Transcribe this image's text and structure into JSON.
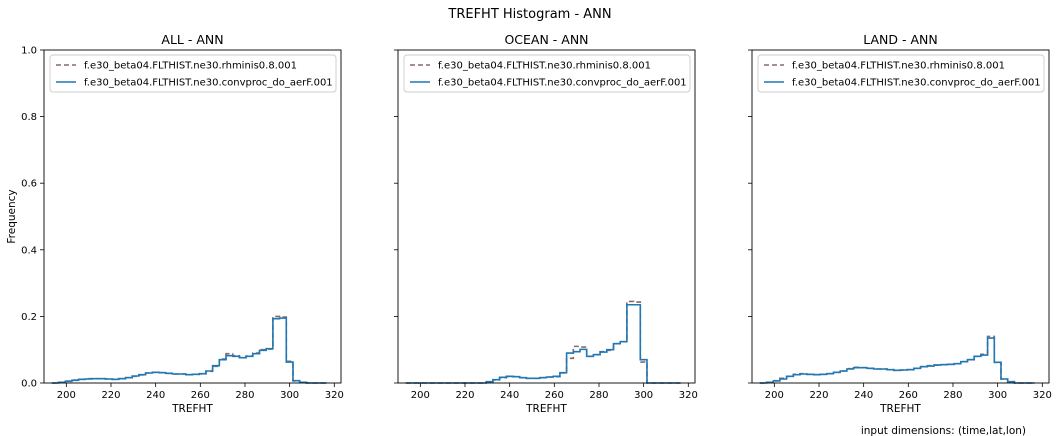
{
  "figure": {
    "suptitle": "TREFHT Histogram - ANN",
    "footnote": "input dimensions: (time,lat,lon)"
  },
  "colors": {
    "series_dashed": "#8c6a6a",
    "series_solid": "#1f77b4"
  },
  "chart_data": [
    {
      "type": "line",
      "title": "ALL - ANN",
      "xlabel": "TREFHT",
      "ylabel": "Frequency",
      "xlim": [
        190,
        323
      ],
      "ylim": [
        0,
        1.0
      ],
      "xticks": [
        200,
        220,
        240,
        260,
        280,
        300,
        320
      ],
      "yticks": [
        0.0,
        0.2,
        0.4,
        0.6,
        0.8,
        1.0
      ],
      "legend_location": "top-left",
      "grid": false,
      "x": [
        195,
        198,
        201,
        204,
        207,
        210,
        213,
        216,
        219,
        222,
        225,
        228,
        231,
        234,
        237,
        240,
        243,
        246,
        249,
        252,
        255,
        258,
        261,
        264,
        267,
        270,
        273,
        276,
        279,
        282,
        285,
        288,
        291,
        294,
        297,
        300,
        303,
        306,
        309,
        312,
        315
      ],
      "series": [
        {
          "name": "f.e30_beta04.FLTHIST.ne30.rhminis0.8.001",
          "style": "dashed",
          "values": [
            0.0,
            0.002,
            0.006,
            0.009,
            0.011,
            0.013,
            0.013,
            0.013,
            0.012,
            0.011,
            0.013,
            0.016,
            0.02,
            0.024,
            0.03,
            0.032,
            0.031,
            0.029,
            0.027,
            0.027,
            0.025,
            0.026,
            0.027,
            0.035,
            0.05,
            0.072,
            0.088,
            0.082,
            0.076,
            0.081,
            0.09,
            0.1,
            0.102,
            0.2,
            0.198,
            0.065,
            0.006,
            0.002,
            0.0,
            0.0,
            0.0
          ]
        },
        {
          "name": "f.e30_beta04.FLTHIST.ne30.convproc_do_aerF.001",
          "style": "solid",
          "values": [
            0.0,
            0.002,
            0.005,
            0.008,
            0.011,
            0.012,
            0.013,
            0.013,
            0.012,
            0.011,
            0.013,
            0.016,
            0.021,
            0.025,
            0.03,
            0.032,
            0.031,
            0.029,
            0.027,
            0.027,
            0.025,
            0.026,
            0.028,
            0.036,
            0.052,
            0.07,
            0.082,
            0.08,
            0.076,
            0.08,
            0.088,
            0.098,
            0.103,
            0.193,
            0.195,
            0.063,
            0.007,
            0.002,
            0.0,
            0.0,
            0.0
          ]
        }
      ]
    },
    {
      "type": "line",
      "title": "OCEAN - ANN",
      "xlabel": "TREFHT",
      "ylabel": "",
      "xlim": [
        190,
        323
      ],
      "ylim": [
        0,
        1.0
      ],
      "xticks": [
        200,
        220,
        240,
        260,
        280,
        300,
        320
      ],
      "yticks": [
        0.0,
        0.2,
        0.4,
        0.6,
        0.8,
        1.0
      ],
      "legend_location": "top-left",
      "grid": false,
      "x": [
        195,
        198,
        201,
        204,
        207,
        210,
        213,
        216,
        219,
        222,
        225,
        228,
        231,
        234,
        237,
        240,
        243,
        246,
        249,
        252,
        255,
        258,
        261,
        264,
        267,
        270,
        273,
        276,
        279,
        282,
        285,
        288,
        291,
        294,
        297,
        300,
        303,
        306,
        309,
        312,
        315
      ],
      "series": [
        {
          "name": "f.e30_beta04.FLTHIST.ne30.rhminis0.8.001",
          "style": "dashed",
          "values": [
            0.0,
            0.0,
            0.0,
            0.0,
            0.0,
            0.0,
            0.0,
            0.0,
            0.0,
            0.0,
            0.0,
            0.0,
            0.003,
            0.009,
            0.016,
            0.019,
            0.019,
            0.016,
            0.014,
            0.014,
            0.016,
            0.018,
            0.019,
            0.03,
            0.074,
            0.11,
            0.108,
            0.08,
            0.085,
            0.094,
            0.098,
            0.118,
            0.124,
            0.245,
            0.243,
            0.063,
            0.0,
            0.0,
            0.0,
            0.0,
            0.0
          ]
        },
        {
          "name": "f.e30_beta04.FLTHIST.ne30.convproc_do_aerF.001",
          "style": "solid",
          "values": [
            0.0,
            0.0,
            0.0,
            0.0,
            0.0,
            0.0,
            0.0,
            0.0,
            0.0,
            0.0,
            0.0,
            0.0,
            0.004,
            0.01,
            0.017,
            0.02,
            0.019,
            0.016,
            0.014,
            0.014,
            0.016,
            0.018,
            0.02,
            0.031,
            0.09,
            0.094,
            0.101,
            0.08,
            0.085,
            0.093,
            0.1,
            0.118,
            0.124,
            0.235,
            0.235,
            0.07,
            0.0,
            0.0,
            0.0,
            0.0,
            0.0
          ]
        }
      ]
    },
    {
      "type": "line",
      "title": "LAND - ANN",
      "xlabel": "TREFHT",
      "ylabel": "",
      "xlim": [
        190,
        323
      ],
      "ylim": [
        0,
        1.0
      ],
      "xticks": [
        200,
        220,
        240,
        260,
        280,
        300,
        320
      ],
      "yticks": [
        0.0,
        0.2,
        0.4,
        0.6,
        0.8,
        1.0
      ],
      "legend_location": "top-left",
      "grid": false,
      "x": [
        195,
        198,
        201,
        204,
        207,
        210,
        213,
        216,
        219,
        222,
        225,
        228,
        231,
        234,
        237,
        240,
        243,
        246,
        249,
        252,
        255,
        258,
        261,
        264,
        267,
        270,
        273,
        276,
        279,
        282,
        285,
        288,
        291,
        294,
        297,
        300,
        303,
        306,
        309,
        312,
        315
      ],
      "series": [
        {
          "name": "f.e30_beta04.FLTHIST.ne30.rhminis0.8.001",
          "style": "dashed",
          "values": [
            0.0,
            0.002,
            0.007,
            0.014,
            0.02,
            0.026,
            0.028,
            0.026,
            0.025,
            0.026,
            0.028,
            0.032,
            0.036,
            0.043,
            0.047,
            0.046,
            0.044,
            0.042,
            0.042,
            0.04,
            0.038,
            0.039,
            0.04,
            0.044,
            0.049,
            0.052,
            0.054,
            0.055,
            0.056,
            0.058,
            0.064,
            0.07,
            0.08,
            0.086,
            0.14,
            0.062,
            0.012,
            0.004,
            0.0,
            0.0,
            0.0
          ]
        },
        {
          "name": "f.e30_beta04.FLTHIST.ne30.convproc_do_aerF.001",
          "style": "solid",
          "values": [
            0.0,
            0.002,
            0.006,
            0.012,
            0.02,
            0.025,
            0.027,
            0.026,
            0.025,
            0.026,
            0.028,
            0.032,
            0.036,
            0.042,
            0.046,
            0.046,
            0.044,
            0.042,
            0.042,
            0.04,
            0.038,
            0.039,
            0.04,
            0.044,
            0.049,
            0.051,
            0.054,
            0.055,
            0.056,
            0.058,
            0.064,
            0.07,
            0.08,
            0.084,
            0.135,
            0.062,
            0.012,
            0.004,
            0.0,
            0.0,
            0.0
          ]
        }
      ]
    }
  ]
}
